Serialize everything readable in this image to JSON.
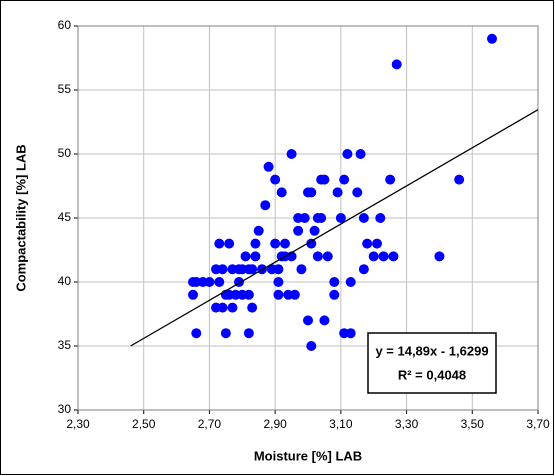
{
  "chart_data": {
    "type": "scatter",
    "x_label": "Moisture [%] LAB",
    "y_label": "Compactability [%] LAB",
    "color": "#0000ff",
    "x": [
      2.65,
      2.65,
      2.66,
      2.66,
      2.68,
      2.7,
      2.72,
      2.72,
      2.73,
      2.73,
      2.74,
      2.74,
      2.75,
      2.75,
      2.76,
      2.76,
      2.77,
      2.77,
      2.78,
      2.79,
      2.79,
      2.8,
      2.8,
      2.81,
      2.82,
      2.82,
      2.82,
      2.83,
      2.83,
      2.84,
      2.84,
      2.85,
      2.86,
      2.87,
      2.88,
      2.89,
      2.9,
      2.9,
      2.91,
      2.91,
      2.91,
      2.92,
      2.92,
      2.93,
      2.93,
      2.94,
      2.95,
      2.95,
      2.96,
      2.97,
      2.97,
      2.98,
      2.99,
      3.0,
      3.0,
      3.01,
      3.01,
      3.01,
      3.02,
      3.03,
      3.03,
      3.04,
      3.04,
      3.05,
      3.05,
      3.06,
      3.08,
      3.08,
      3.09,
      3.1,
      3.11,
      3.11,
      3.12,
      3.13,
      3.13,
      3.15,
      3.16,
      3.17,
      3.17,
      3.18,
      3.2,
      3.21,
      3.22,
      3.23,
      3.25,
      3.26,
      3.27,
      3.4,
      3.46,
      3.56
    ],
    "values": [
      40,
      39,
      40,
      36,
      40,
      40,
      38,
      41,
      43,
      40,
      41,
      38,
      36,
      39,
      43,
      39,
      41,
      38,
      39,
      40,
      41,
      41,
      39,
      42,
      41,
      36,
      39,
      38,
      41,
      42,
      43,
      44,
      41,
      46,
      49,
      41,
      43,
      48,
      40,
      41,
      39,
      42,
      47,
      43,
      42,
      39,
      42,
      50,
      39,
      45,
      44,
      41,
      45,
      47,
      37,
      43,
      35,
      47,
      44,
      45,
      42,
      48,
      45,
      37,
      48,
      42,
      39,
      40,
      47,
      45,
      48,
      36,
      50,
      36,
      40,
      47,
      50,
      45,
      41,
      43,
      42,
      43,
      45,
      42,
      48,
      42,
      57,
      42,
      48,
      59
    ],
    "trendline": {
      "x": [
        2.46,
        3.7
      ],
      "y": [
        35,
        53.46
      ]
    },
    "equation": "y = 14,89x - 1,6299",
    "r_squared": "R² = 0,4048",
    "xlim": [
      2.3,
      3.7
    ],
    "xticks": [
      {
        "value": 2.3,
        "label": "2,30"
      },
      {
        "value": 2.5,
        "label": "2,50"
      },
      {
        "value": 2.7,
        "label": "2,70"
      },
      {
        "value": 2.9,
        "label": "2,90"
      },
      {
        "value": 3.1,
        "label": "3,10"
      },
      {
        "value": 3.3,
        "label": "3,30"
      },
      {
        "value": 3.5,
        "label": "3,50"
      },
      {
        "value": 3.7,
        "label": "3,70"
      }
    ],
    "ylim": [
      30,
      60
    ],
    "yticks": [
      30,
      35,
      40,
      45,
      50,
      55,
      60
    ],
    "grid": true
  }
}
